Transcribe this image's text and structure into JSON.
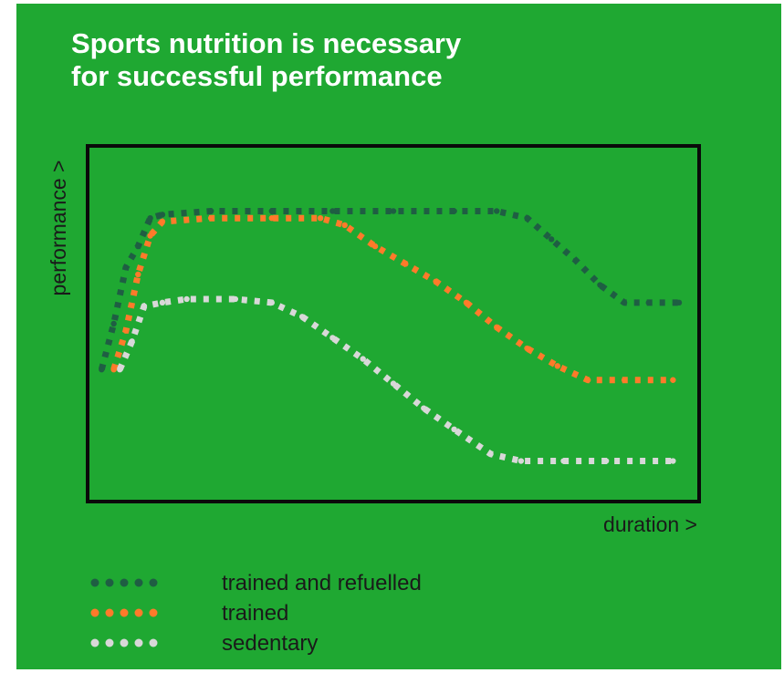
{
  "colors": {
    "background": "#1fa832",
    "frame": "#0a0a0a",
    "title": "#ffffff",
    "text": "#1a1a1a"
  },
  "chart_data": {
    "type": "line",
    "title": "Sports nutrition is necessary\nfor successful performance",
    "xlabel": "duration >",
    "ylabel": "performance >",
    "xlim": [
      0,
      100
    ],
    "ylim": [
      0,
      100
    ],
    "grid": false,
    "legend_position": "bottom-left",
    "line_style": "dotted",
    "series": [
      {
        "name": "trained and refuelled",
        "color": "#1f5e43",
        "points": [
          [
            2,
            37
          ],
          [
            4,
            50
          ],
          [
            6,
            66
          ],
          [
            8,
            72
          ],
          [
            10,
            80
          ],
          [
            12,
            81
          ],
          [
            20,
            82
          ],
          [
            30,
            82
          ],
          [
            40,
            82
          ],
          [
            50,
            82
          ],
          [
            60,
            82
          ],
          [
            67,
            82
          ],
          [
            72,
            80
          ],
          [
            76,
            74
          ],
          [
            80,
            68
          ],
          [
            84,
            61
          ],
          [
            88,
            56
          ],
          [
            92,
            56
          ],
          [
            97,
            56
          ]
        ]
      },
      {
        "name": "trained",
        "color": "#ff7a2a",
        "points": [
          [
            4,
            37
          ],
          [
            6,
            48
          ],
          [
            8,
            64
          ],
          [
            10,
            75
          ],
          [
            12,
            79
          ],
          [
            20,
            80
          ],
          [
            30,
            80
          ],
          [
            38,
            80
          ],
          [
            42,
            78
          ],
          [
            47,
            72
          ],
          [
            52,
            67
          ],
          [
            57,
            62
          ],
          [
            62,
            56
          ],
          [
            67,
            49
          ],
          [
            72,
            43
          ],
          [
            77,
            38
          ],
          [
            82,
            34
          ],
          [
            88,
            34
          ],
          [
            96,
            34
          ]
        ]
      },
      {
        "name": "sedentary",
        "color": "#d8d8d8",
        "points": [
          [
            5,
            37
          ],
          [
            7,
            45
          ],
          [
            9,
            55
          ],
          [
            12,
            56
          ],
          [
            16,
            57
          ],
          [
            24,
            57
          ],
          [
            30,
            56
          ],
          [
            35,
            52
          ],
          [
            40,
            46
          ],
          [
            45,
            40
          ],
          [
            50,
            33
          ],
          [
            55,
            26
          ],
          [
            60,
            20
          ],
          [
            66,
            13
          ],
          [
            71,
            11
          ],
          [
            78,
            11
          ],
          [
            85,
            11
          ],
          [
            96,
            11
          ]
        ]
      }
    ]
  }
}
